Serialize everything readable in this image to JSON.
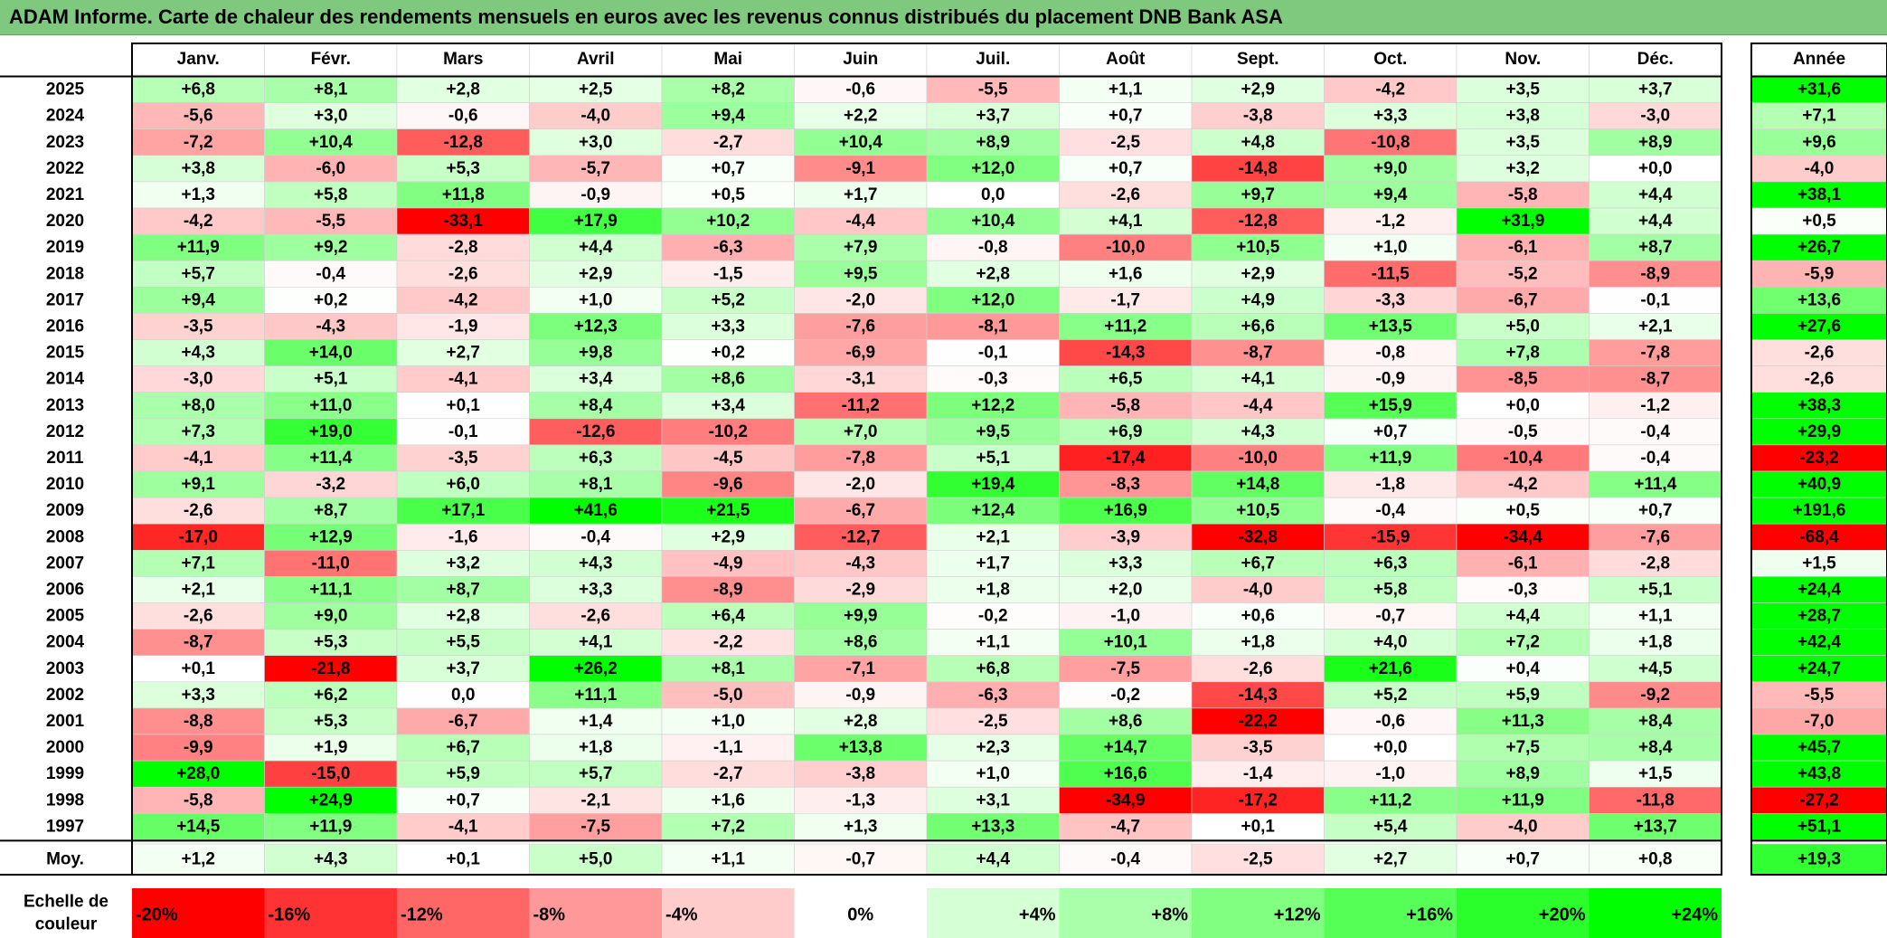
{
  "title": "ADAM Informe. Carte de chaleur des rendements mensuels en euros avec les revenus connus distribués du placement DNB Bank ASA",
  "chart_data": {
    "type": "heatmap",
    "columns": [
      "Janv.",
      "Févr.",
      "Mars",
      "Avril",
      "Mai",
      "Juin",
      "Juil.",
      "Août",
      "Sept.",
      "Oct.",
      "Nov.",
      "Déc."
    ],
    "year_header": "Année",
    "rows": [
      {
        "year": "2025",
        "values": [
          "+6,8",
          "+8,1",
          "+2,8",
          "+2,5",
          "+8,2",
          "-0,6",
          "-5,5",
          "+1,1",
          "+2,9",
          "-4,2",
          "+3,5",
          "+3,7"
        ],
        "annual": "+31,6"
      },
      {
        "year": "2024",
        "values": [
          "-5,6",
          "+3,0",
          "-0,6",
          "-4,0",
          "+9,4",
          "+2,2",
          "+3,7",
          "+0,7",
          "-3,8",
          "+3,3",
          "+3,8",
          "-3,0"
        ],
        "annual": "+7,1"
      },
      {
        "year": "2023",
        "values": [
          "-7,2",
          "+10,4",
          "-12,8",
          "+3,0",
          "-2,7",
          "+10,4",
          "+8,9",
          "-2,5",
          "+4,8",
          "-10,8",
          "+3,5",
          "+8,9"
        ],
        "annual": "+9,6"
      },
      {
        "year": "2022",
        "values": [
          "+3,8",
          "-6,0",
          "+5,3",
          "-5,7",
          "+0,7",
          "-9,1",
          "+12,0",
          "+0,7",
          "-14,8",
          "+9,0",
          "+3,2",
          "+0,0"
        ],
        "annual": "-4,0"
      },
      {
        "year": "2021",
        "values": [
          "+1,3",
          "+5,8",
          "+11,8",
          "-0,9",
          "+0,5",
          "+1,7",
          "0,0",
          "-2,6",
          "+9,7",
          "+9,4",
          "-5,8",
          "+4,4"
        ],
        "annual": "+38,1"
      },
      {
        "year": "2020",
        "values": [
          "-4,2",
          "-5,5",
          "-33,1",
          "+17,9",
          "+10,2",
          "-4,4",
          "+10,4",
          "+4,1",
          "-12,8",
          "-1,2",
          "+31,9",
          "+4,4"
        ],
        "annual": "+0,5"
      },
      {
        "year": "2019",
        "values": [
          "+11,9",
          "+9,2",
          "-2,8",
          "+4,4",
          "-6,3",
          "+7,9",
          "-0,8",
          "-10,0",
          "+10,5",
          "+1,0",
          "-6,1",
          "+8,7"
        ],
        "annual": "+26,7"
      },
      {
        "year": "2018",
        "values": [
          "+5,7",
          "-0,4",
          "-2,6",
          "+2,9",
          "-1,5",
          "+9,5",
          "+2,8",
          "+1,6",
          "+2,9",
          "-11,5",
          "-5,2",
          "-8,9"
        ],
        "annual": "-5,9"
      },
      {
        "year": "2017",
        "values": [
          "+9,4",
          "+0,2",
          "-4,2",
          "+1,0",
          "+5,2",
          "-2,0",
          "+12,0",
          "-1,7",
          "+4,9",
          "-3,3",
          "-6,7",
          "-0,1"
        ],
        "annual": "+13,6"
      },
      {
        "year": "2016",
        "values": [
          "-3,5",
          "-4,3",
          "-1,9",
          "+12,3",
          "+3,3",
          "-7,6",
          "-8,1",
          "+11,2",
          "+6,6",
          "+13,5",
          "+5,0",
          "+2,1"
        ],
        "annual": "+27,6"
      },
      {
        "year": "2015",
        "values": [
          "+4,3",
          "+14,0",
          "+2,7",
          "+9,8",
          "+0,2",
          "-6,9",
          "-0,1",
          "-14,3",
          "-8,7",
          "-0,8",
          "+7,8",
          "-7,8"
        ],
        "annual": "-2,6"
      },
      {
        "year": "2014",
        "values": [
          "-3,0",
          "+5,1",
          "-4,1",
          "+3,4",
          "+8,6",
          "-3,1",
          "-0,3",
          "+6,5",
          "+4,1",
          "-0,9",
          "-8,5",
          "-8,7"
        ],
        "annual": "-2,6"
      },
      {
        "year": "2013",
        "values": [
          "+8,0",
          "+11,0",
          "+0,1",
          "+8,4",
          "+3,4",
          "-11,2",
          "+12,2",
          "-5,8",
          "-4,4",
          "+15,9",
          "+0,0",
          "-1,2"
        ],
        "annual": "+38,3"
      },
      {
        "year": "2012",
        "values": [
          "+7,3",
          "+19,0",
          "-0,1",
          "-12,6",
          "-10,2",
          "+7,0",
          "+9,5",
          "+6,9",
          "+4,3",
          "+0,7",
          "-0,5",
          "-0,4"
        ],
        "annual": "+29,9"
      },
      {
        "year": "2011",
        "values": [
          "-4,1",
          "+11,4",
          "-3,5",
          "+6,3",
          "-4,5",
          "-7,8",
          "+5,1",
          "-17,4",
          "-10,0",
          "+11,9",
          "-10,4",
          "-0,4"
        ],
        "annual": "-23,2"
      },
      {
        "year": "2010",
        "values": [
          "+9,1",
          "-3,2",
          "+6,0",
          "+8,1",
          "-9,6",
          "-2,0",
          "+19,4",
          "-8,3",
          "+14,8",
          "-1,8",
          "-4,2",
          "+11,4"
        ],
        "annual": "+40,9"
      },
      {
        "year": "2009",
        "values": [
          "-2,6",
          "+8,7",
          "+17,1",
          "+41,6",
          "+21,5",
          "-6,7",
          "+12,4",
          "+16,9",
          "+10,5",
          "-0,4",
          "+0,5",
          "+0,7"
        ],
        "annual": "+191,6"
      },
      {
        "year": "2008",
        "values": [
          "-17,0",
          "+12,9",
          "-1,6",
          "-0,4",
          "+2,9",
          "-12,7",
          "+2,1",
          "-3,9",
          "-32,8",
          "-15,9",
          "-34,4",
          "-7,6"
        ],
        "annual": "-68,4"
      },
      {
        "year": "2007",
        "values": [
          "+7,1",
          "-11,0",
          "+3,2",
          "+4,3",
          "-4,9",
          "-4,3",
          "+1,7",
          "+3,3",
          "+6,7",
          "+6,3",
          "-6,1",
          "-2,8"
        ],
        "annual": "+1,5"
      },
      {
        "year": "2006",
        "values": [
          "+2,1",
          "+11,1",
          "+8,7",
          "+3,3",
          "-8,9",
          "-2,9",
          "+1,8",
          "+2,0",
          "-4,0",
          "+5,8",
          "-0,3",
          "+5,1"
        ],
        "annual": "+24,4"
      },
      {
        "year": "2005",
        "values": [
          "-2,6",
          "+9,0",
          "+2,8",
          "-2,6",
          "+6,4",
          "+9,9",
          "-0,2",
          "-1,0",
          "+0,6",
          "-0,7",
          "+4,4",
          "+1,1"
        ],
        "annual": "+28,7"
      },
      {
        "year": "2004",
        "values": [
          "-8,7",
          "+5,3",
          "+5,5",
          "+4,1",
          "-2,2",
          "+8,6",
          "+1,1",
          "+10,1",
          "+1,8",
          "+4,0",
          "+7,2",
          "+1,8"
        ],
        "annual": "+42,4"
      },
      {
        "year": "2003",
        "values": [
          "+0,1",
          "-21,8",
          "+3,7",
          "+26,2",
          "+8,1",
          "-7,1",
          "+6,8",
          "-7,5",
          "-2,6",
          "+21,6",
          "+0,4",
          "+4,5"
        ],
        "annual": "+24,7"
      },
      {
        "year": "2002",
        "values": [
          "+3,3",
          "+6,2",
          "0,0",
          "+11,1",
          "-5,0",
          "-0,9",
          "-6,3",
          "-0,2",
          "-14,3",
          "+5,2",
          "+5,9",
          "-9,2"
        ],
        "annual": "-5,5"
      },
      {
        "year": "2001",
        "values": [
          "-8,8",
          "+5,3",
          "-6,7",
          "+1,4",
          "+1,0",
          "+2,8",
          "-2,5",
          "+8,6",
          "-22,2",
          "-0,6",
          "+11,3",
          "+8,4"
        ],
        "annual": "-7,0"
      },
      {
        "year": "2000",
        "values": [
          "-9,9",
          "+1,9",
          "+6,7",
          "+1,8",
          "-1,1",
          "+13,8",
          "+2,3",
          "+14,7",
          "-3,5",
          "+0,0",
          "+7,5",
          "+8,4"
        ],
        "annual": "+45,7"
      },
      {
        "year": "1999",
        "values": [
          "+28,0",
          "-15,0",
          "+5,9",
          "+5,7",
          "-2,7",
          "-3,8",
          "+1,0",
          "+16,6",
          "-1,4",
          "-1,0",
          "+8,9",
          "+1,5"
        ],
        "annual": "+43,8"
      },
      {
        "year": "1998",
        "values": [
          "-5,8",
          "+24,9",
          "+0,7",
          "-2,1",
          "+1,6",
          "-1,3",
          "+3,1",
          "-34,9",
          "-17,2",
          "+11,2",
          "+11,9",
          "-11,8"
        ],
        "annual": "-27,2"
      },
      {
        "year": "1997",
        "values": [
          "+14,5",
          "+11,9",
          "-4,1",
          "-7,5",
          "+7,2",
          "+1,3",
          "+13,3",
          "-4,7",
          "+0,1",
          "+5,4",
          "-4,0",
          "+13,7"
        ],
        "annual": "+51,1"
      }
    ],
    "average": {
      "label": "Moy.",
      "values": [
        "+1,2",
        "+4,3",
        "+0,1",
        "+5,0",
        "+1,1",
        "-0,7",
        "+4,4",
        "-0,4",
        "-2,5",
        "+2,7",
        "+0,7",
        "+0,8"
      ],
      "annual": "+19,3"
    },
    "legend": {
      "label_line1": "Echelle de",
      "label_line2": "couleur",
      "stops": [
        {
          "label": "-20%",
          "value": -20
        },
        {
          "label": "-16%",
          "value": -16
        },
        {
          "label": "-12%",
          "value": -12
        },
        {
          "label": "-8%",
          "value": -8
        },
        {
          "label": "-4%",
          "value": -4
        },
        {
          "label": "0%",
          "value": 0
        },
        {
          "label": "+4%",
          "value": 4
        },
        {
          "label": "+8%",
          "value": 8
        },
        {
          "label": "+12%",
          "value": 12
        },
        {
          "label": "+16%",
          "value": 16
        },
        {
          "label": "+20%",
          "value": 20
        },
        {
          "label": "+24%",
          "value": 24
        }
      ]
    },
    "color_scale": {
      "negative": "#ff0000",
      "zero": "#ffffff",
      "positive": "#00ff00",
      "min": -20,
      "max": 24
    }
  },
  "colors": {
    "title_bar": "#7fc97f",
    "border": "#000000"
  }
}
